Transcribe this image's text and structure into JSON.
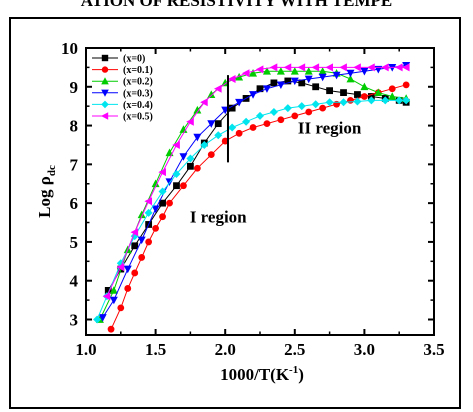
{
  "banner": "ATION OF RESISTIVITY WITH TEMPE",
  "chart_data": {
    "type": "scatter",
    "xlabel_main": "1000/T(K",
    "xlabel_sup": "-1",
    "xlabel_close": ")",
    "ylabel_main": "Log ρ",
    "ylabel_sub": "dc",
    "xlim": [
      1.0,
      3.5
    ],
    "ylim": [
      2.6,
      10.0
    ],
    "xticks": [
      1.0,
      1.5,
      2.0,
      2.5,
      3.0,
      3.5
    ],
    "xtick_labels": [
      "1.0",
      "1.5",
      "2.0",
      "2.5",
      "3.0",
      "3.5"
    ],
    "yticks": [
      3,
      4,
      5,
      6,
      7,
      8,
      9,
      10
    ],
    "ytick_labels": [
      "3",
      "4",
      "5",
      "6",
      "7",
      "8",
      "9",
      "10"
    ],
    "legend_position": "top-left",
    "grid": false,
    "annotations": [
      {
        "text": "II region",
        "x": 2.75,
        "y": 7.8
      },
      {
        "text": "I region",
        "x": 1.95,
        "y": 5.5
      }
    ],
    "divider_line": {
      "x": 2.02,
      "y_from": 7.05,
      "y_to": 9.3
    },
    "series": [
      {
        "name": "(x=0)",
        "color": "#000000",
        "marker": "square",
        "x": [
          1.16,
          1.25,
          1.35,
          1.45,
          1.55,
          1.65,
          1.75,
          1.85,
          1.95,
          2.05,
          2.15,
          2.25,
          2.35,
          2.45,
          2.55,
          2.65,
          2.75,
          2.85,
          2.95,
          3.05,
          3.15,
          3.25,
          3.3
        ],
        "y": [
          3.75,
          4.3,
          4.9,
          5.45,
          6.0,
          6.45,
          6.95,
          7.55,
          8.05,
          8.45,
          8.7,
          8.95,
          9.1,
          9.15,
          9.1,
          9.0,
          8.9,
          8.85,
          8.8,
          8.75,
          8.7,
          8.65,
          8.6
        ]
      },
      {
        "name": "(x=0.1)",
        "color": "#ff0000",
        "marker": "circle",
        "x": [
          1.18,
          1.25,
          1.3,
          1.35,
          1.4,
          1.45,
          1.5,
          1.55,
          1.6,
          1.7,
          1.8,
          1.9,
          2.0,
          2.1,
          2.2,
          2.3,
          2.4,
          2.5,
          2.6,
          2.7,
          2.8,
          2.9,
          3.0,
          3.1,
          3.2,
          3.3
        ],
        "y": [
          2.75,
          3.3,
          3.8,
          4.2,
          4.6,
          5.0,
          5.35,
          5.65,
          6.0,
          6.45,
          6.9,
          7.25,
          7.6,
          7.8,
          7.95,
          8.05,
          8.15,
          8.25,
          8.35,
          8.45,
          8.55,
          8.65,
          8.75,
          8.85,
          8.95,
          9.05
        ]
      },
      {
        "name": "(x=0.2)",
        "color": "#00cc00",
        "marker": "triangle-up",
        "x": [
          1.1,
          1.2,
          1.3,
          1.4,
          1.5,
          1.6,
          1.7,
          1.8,
          1.9,
          2.0,
          2.1,
          2.2,
          2.3,
          2.4,
          2.5,
          2.6,
          2.7,
          2.8,
          2.9,
          3.0,
          3.1,
          3.2,
          3.3
        ],
        "y": [
          3.0,
          3.75,
          4.8,
          5.7,
          6.5,
          7.3,
          7.9,
          8.4,
          8.8,
          9.1,
          9.25,
          9.35,
          9.4,
          9.4,
          9.4,
          9.4,
          9.4,
          9.35,
          9.2,
          9.0,
          8.85,
          8.75,
          8.7
        ]
      },
      {
        "name": "(x=0.3)",
        "color": "#0000ff",
        "marker": "triangle-down",
        "x": [
          1.12,
          1.2,
          1.3,
          1.4,
          1.5,
          1.6,
          1.7,
          1.8,
          1.9,
          2.0,
          2.1,
          2.2,
          2.3,
          2.4,
          2.5,
          2.6,
          2.7,
          2.8,
          2.9,
          3.0,
          3.1,
          3.2,
          3.3
        ],
        "y": [
          3.05,
          3.5,
          4.3,
          5.05,
          5.85,
          6.55,
          7.2,
          7.7,
          8.05,
          8.4,
          8.6,
          8.8,
          8.95,
          9.05,
          9.15,
          9.2,
          9.25,
          9.3,
          9.35,
          9.4,
          9.45,
          9.5,
          9.55
        ]
      },
      {
        "name": "(x=0.4)",
        "color": "#00e5ee",
        "marker": "diamond",
        "x": [
          1.08,
          1.15,
          1.25,
          1.35,
          1.45,
          1.55,
          1.65,
          1.75,
          1.85,
          1.95,
          2.05,
          2.15,
          2.25,
          2.35,
          2.45,
          2.55,
          2.65,
          2.75,
          2.85,
          2.95,
          3.05,
          3.15,
          3.25,
          3.3
        ],
        "y": [
          3.0,
          3.6,
          4.45,
          5.15,
          5.75,
          6.3,
          6.75,
          7.15,
          7.5,
          7.75,
          7.95,
          8.1,
          8.25,
          8.35,
          8.45,
          8.5,
          8.55,
          8.6,
          8.6,
          8.62,
          8.65,
          8.65,
          8.65,
          8.65
        ]
      },
      {
        "name": "(x=0.5)",
        "color": "#ff00ff",
        "marker": "triangle-left",
        "x": [
          1.15,
          1.25,
          1.35,
          1.45,
          1.55,
          1.65,
          1.75,
          1.85,
          1.95,
          2.05,
          2.15,
          2.25,
          2.35,
          2.45,
          2.55,
          2.65,
          2.75,
          2.85,
          2.95,
          3.05,
          3.15,
          3.25,
          3.3
        ],
        "y": [
          3.6,
          4.35,
          5.25,
          6.05,
          6.8,
          7.5,
          8.1,
          8.6,
          8.95,
          9.2,
          9.35,
          9.45,
          9.5,
          9.5,
          9.5,
          9.5,
          9.5,
          9.5,
          9.5,
          9.5,
          9.5,
          9.5,
          9.5
        ]
      }
    ]
  }
}
